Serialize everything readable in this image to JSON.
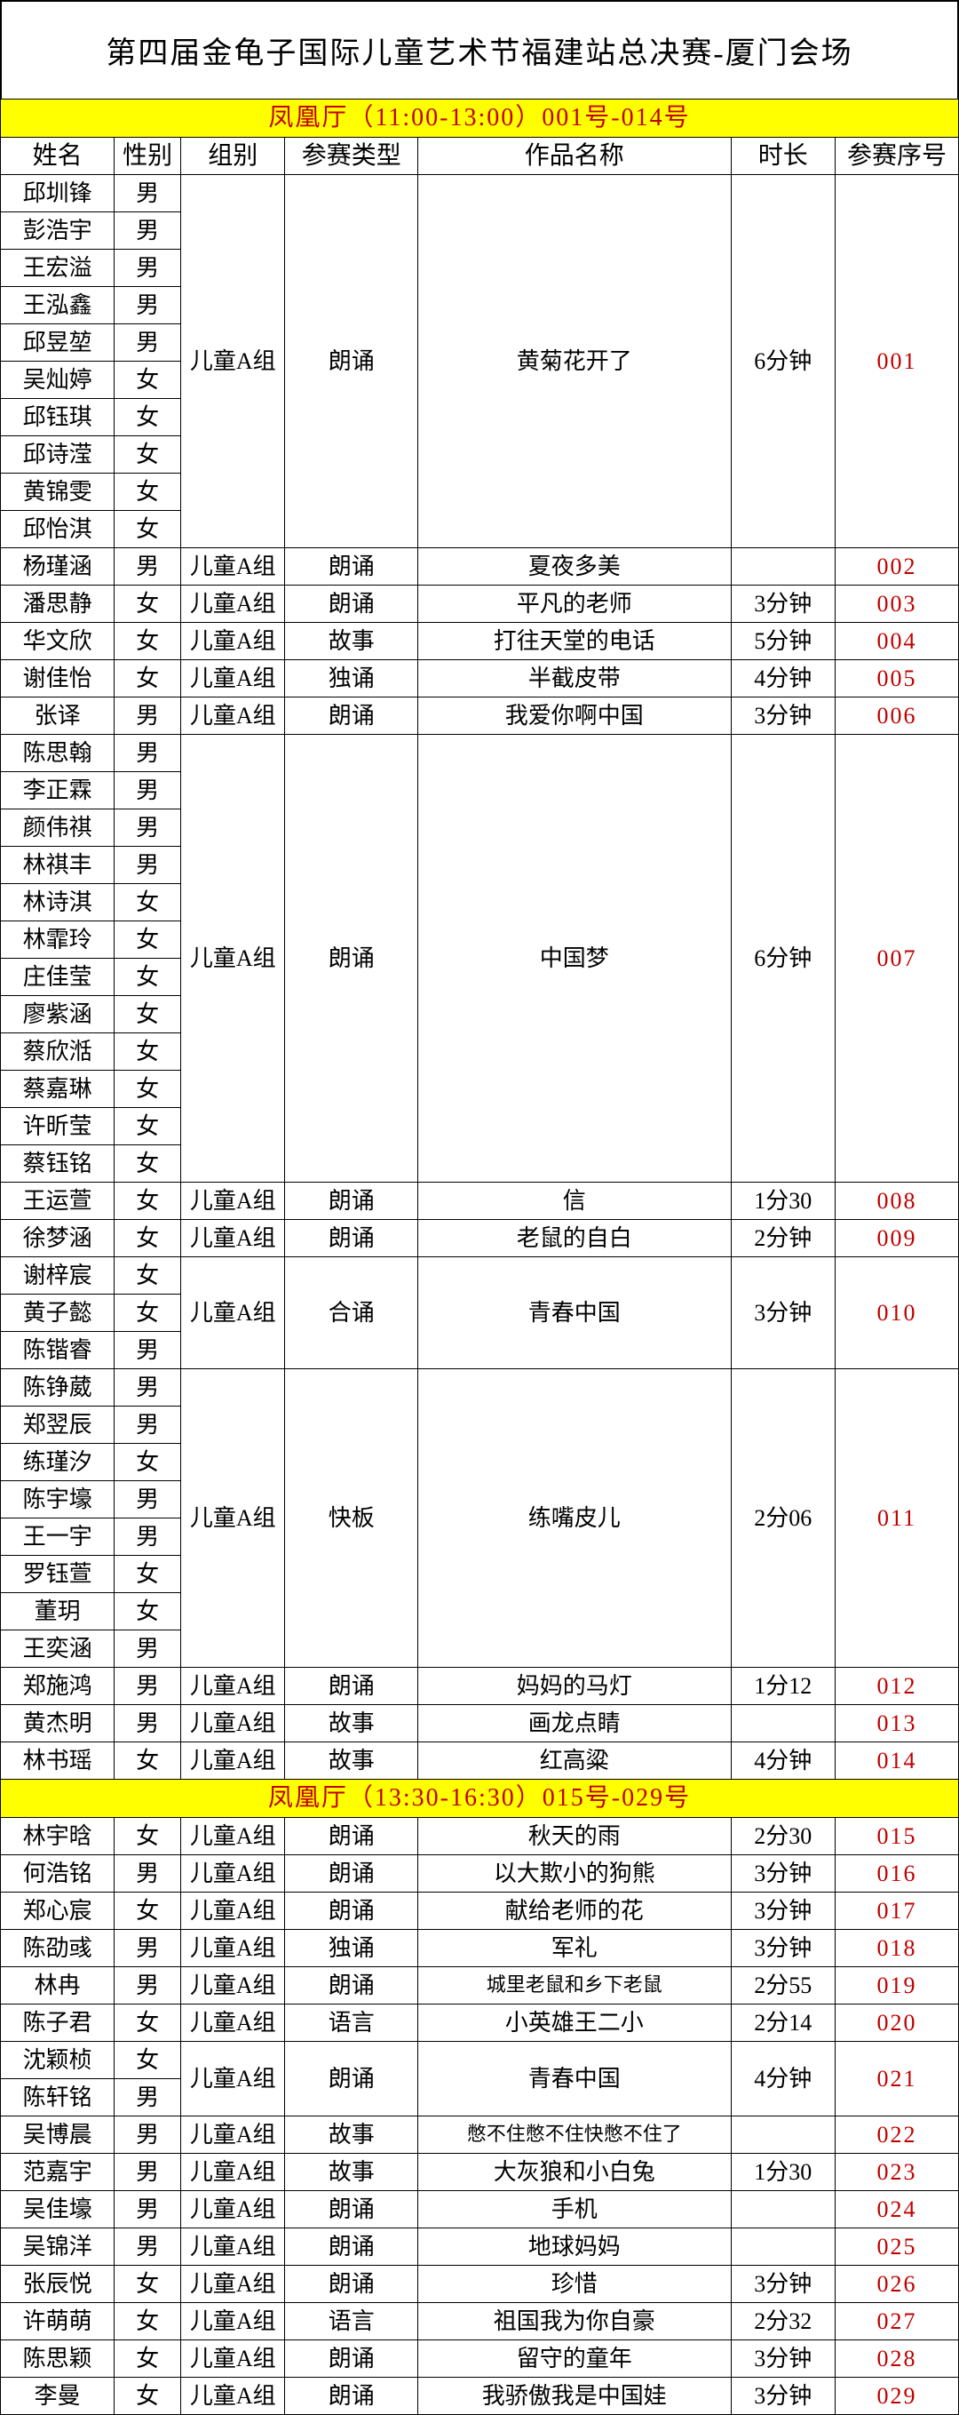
{
  "title": "第四届金龟子国际儿童艺术节福建站总决赛-厦门会场",
  "headers": {
    "name": "姓名",
    "sex": "性别",
    "group": "组别",
    "type": "参赛类型",
    "work": "作品名称",
    "duration": "时长",
    "seq": "参赛序号"
  },
  "colors": {
    "section_bg": "#ffff00",
    "section_fg": "#c00000",
    "seq_fg": "#c00000",
    "border": "#000000",
    "page_bg": "#ffffff"
  },
  "sections": [
    {
      "header": "凤凰厅（11:00-13:00）001号-014号",
      "entries": [
        {
          "group": "儿童A组",
          "type": "朗诵",
          "work": "黄菊花开了",
          "duration": "6分钟",
          "seq": "001",
          "people": [
            {
              "name": "邱圳锋",
              "sex": "男"
            },
            {
              "name": "彭浩宇",
              "sex": "男"
            },
            {
              "name": "王宏溢",
              "sex": "男"
            },
            {
              "name": "王泓鑫",
              "sex": "男"
            },
            {
              "name": "邱昱堃",
              "sex": "男"
            },
            {
              "name": "吴灿婷",
              "sex": "女"
            },
            {
              "name": "邱钰琪",
              "sex": "女"
            },
            {
              "name": "邱诗滢",
              "sex": "女"
            },
            {
              "name": "黄锦雯",
              "sex": "女"
            },
            {
              "name": "邱怡淇",
              "sex": "女"
            }
          ]
        },
        {
          "group": "儿童A组",
          "type": "朗诵",
          "work": "夏夜多美",
          "duration": "",
          "seq": "002",
          "people": [
            {
              "name": "杨瑾涵",
              "sex": "男"
            }
          ]
        },
        {
          "group": "儿童A组",
          "type": "朗诵",
          "work": "平凡的老师",
          "duration": "3分钟",
          "seq": "003",
          "people": [
            {
              "name": "潘思静",
              "sex": "女"
            }
          ]
        },
        {
          "group": "儿童A组",
          "type": "故事",
          "work": "打往天堂的电话",
          "duration": "5分钟",
          "seq": "004",
          "people": [
            {
              "name": "华文欣",
              "sex": "女"
            }
          ]
        },
        {
          "group": "儿童A组",
          "type": "独诵",
          "work": "半截皮带",
          "duration": "4分钟",
          "seq": "005",
          "people": [
            {
              "name": "谢佳怡",
              "sex": "女"
            }
          ]
        },
        {
          "group": "儿童A组",
          "type": "朗诵",
          "work": "我爱你啊中国",
          "duration": "3分钟",
          "seq": "006",
          "people": [
            {
              "name": "张译",
              "sex": "男"
            }
          ]
        },
        {
          "group": "儿童A组",
          "type": "朗诵",
          "work": "中国梦",
          "duration": "6分钟",
          "seq": "007",
          "people": [
            {
              "name": "陈思翰",
              "sex": "男"
            },
            {
              "name": "李正霖",
              "sex": "男"
            },
            {
              "name": "颜伟祺",
              "sex": "男"
            },
            {
              "name": "林祺丰",
              "sex": "男"
            },
            {
              "name": "林诗淇",
              "sex": "女"
            },
            {
              "name": "林霏玲",
              "sex": "女"
            },
            {
              "name": "庄佳莹",
              "sex": "女"
            },
            {
              "name": "廖紫涵",
              "sex": "女"
            },
            {
              "name": "蔡欣湉",
              "sex": "女"
            },
            {
              "name": "蔡嘉琳",
              "sex": "女"
            },
            {
              "name": "许昕莹",
              "sex": "女"
            },
            {
              "name": "蔡钰铭",
              "sex": "女"
            }
          ]
        },
        {
          "group": "儿童A组",
          "type": "朗诵",
          "work": "信",
          "duration": "1分30",
          "seq": "008",
          "people": [
            {
              "name": "王运萱",
              "sex": "女"
            }
          ]
        },
        {
          "group": "儿童A组",
          "type": "朗诵",
          "work": "老鼠的自白",
          "duration": "2分钟",
          "seq": "009",
          "people": [
            {
              "name": "徐梦涵",
              "sex": "女"
            }
          ]
        },
        {
          "group": "儿童A组",
          "type": "合诵",
          "work": "青春中国",
          "duration": "3分钟",
          "seq": "010",
          "people": [
            {
              "name": "谢梓宸",
              "sex": "女"
            },
            {
              "name": "黄子懿",
              "sex": "女"
            },
            {
              "name": "陈锴睿",
              "sex": "男"
            }
          ]
        },
        {
          "group": "儿童A组",
          "type": "快板",
          "work": "练嘴皮儿",
          "duration": "2分06",
          "seq": "011",
          "people": [
            {
              "name": "陈铮葳",
              "sex": "男"
            },
            {
              "name": "郑翌辰",
              "sex": "男"
            },
            {
              "name": "练瑾汐",
              "sex": "女"
            },
            {
              "name": "陈宇壕",
              "sex": "男"
            },
            {
              "name": "王一宇",
              "sex": "男"
            },
            {
              "name": "罗钰萱",
              "sex": "女"
            },
            {
              "name": "董玥",
              "sex": "女"
            },
            {
              "name": "王奕涵",
              "sex": "男"
            }
          ]
        },
        {
          "group": "儿童A组",
          "type": "朗诵",
          "work": "妈妈的马灯",
          "duration": "1分12",
          "seq": "012",
          "people": [
            {
              "name": "郑施鸿",
              "sex": "男"
            }
          ]
        },
        {
          "group": "儿童A组",
          "type": "故事",
          "work": "画龙点睛",
          "duration": "",
          "seq": "013",
          "people": [
            {
              "name": "黄杰明",
              "sex": "男"
            }
          ]
        },
        {
          "group": "儿童A组",
          "type": "故事",
          "work": "红高粱",
          "duration": "4分钟",
          "seq": "014",
          "people": [
            {
              "name": "林书瑶",
              "sex": "女"
            }
          ]
        }
      ]
    },
    {
      "header": "凤凰厅（13:30-16:30）015号-029号",
      "entries": [
        {
          "group": "儿童A组",
          "type": "朗诵",
          "work": "秋天的雨",
          "duration": "2分30",
          "seq": "015",
          "people": [
            {
              "name": "林宇晗",
              "sex": "女"
            }
          ]
        },
        {
          "group": "儿童A组",
          "type": "朗诵",
          "work": "以大欺小的狗熊",
          "duration": "3分钟",
          "seq": "016",
          "people": [
            {
              "name": "何浩铭",
              "sex": "男"
            }
          ]
        },
        {
          "group": "儿童A组",
          "type": "朗诵",
          "work": "献给老师的花",
          "duration": "3分钟",
          "seq": "017",
          "people": [
            {
              "name": "郑心宸",
              "sex": "女"
            }
          ]
        },
        {
          "group": "儿童A组",
          "type": "独诵",
          "work": "军礼",
          "duration": "3分钟",
          "seq": "018",
          "people": [
            {
              "name": "陈劭彧",
              "sex": "男"
            }
          ]
        },
        {
          "group": "儿童A组",
          "type": "朗诵",
          "work": "城里老鼠和乡下老鼠",
          "duration": "2分55",
          "seq": "019",
          "work_small": true,
          "people": [
            {
              "name": "林冉",
              "sex": "男"
            }
          ]
        },
        {
          "group": "儿童A组",
          "type": "语言",
          "work": "小英雄王二小",
          "duration": "2分14",
          "seq": "020",
          "people": [
            {
              "name": "陈子君",
              "sex": "女"
            }
          ]
        },
        {
          "group": "儿童A组",
          "type": "朗诵",
          "work": "青春中国",
          "duration": "4分钟",
          "seq": "021",
          "people": [
            {
              "name": "沈颖桢",
              "sex": "女"
            },
            {
              "name": "陈轩铭",
              "sex": "男"
            }
          ]
        },
        {
          "group": "儿童A组",
          "type": "故事",
          "work": "憋不住憋不住快憋不住了",
          "duration": "",
          "seq": "022",
          "work_small": true,
          "people": [
            {
              "name": "吴博晨",
              "sex": "男"
            }
          ]
        },
        {
          "group": "儿童A组",
          "type": "故事",
          "work": "大灰狼和小白兔",
          "duration": "1分30",
          "seq": "023",
          "people": [
            {
              "name": "范嘉宇",
              "sex": "男"
            }
          ]
        },
        {
          "group": "儿童A组",
          "type": "朗诵",
          "work": "手机",
          "duration": "",
          "seq": "024",
          "people": [
            {
              "name": "吴佳壕",
              "sex": "男"
            }
          ]
        },
        {
          "group": "儿童A组",
          "type": "朗诵",
          "work": "地球妈妈",
          "duration": "",
          "seq": "025",
          "people": [
            {
              "name": "吴锦洋",
              "sex": "男"
            }
          ]
        },
        {
          "group": "儿童A组",
          "type": "朗诵",
          "work": "珍惜",
          "duration": "3分钟",
          "seq": "026",
          "people": [
            {
              "name": "张辰悦",
              "sex": "女"
            }
          ]
        },
        {
          "group": "儿童A组",
          "type": "语言",
          "work": "祖国我为你自豪",
          "duration": "2分32",
          "seq": "027",
          "people": [
            {
              "name": "许萌萌",
              "sex": "女"
            }
          ]
        },
        {
          "group": "儿童A组",
          "type": "朗诵",
          "work": "留守的童年",
          "duration": "3分钟",
          "seq": "028",
          "people": [
            {
              "name": "陈思颖",
              "sex": "女"
            }
          ]
        },
        {
          "group": "儿童A组",
          "type": "朗诵",
          "work": "我骄傲我是中国娃",
          "duration": "3分钟",
          "seq": "029",
          "people": [
            {
              "name": "李曼",
              "sex": "女"
            }
          ]
        }
      ]
    }
  ]
}
